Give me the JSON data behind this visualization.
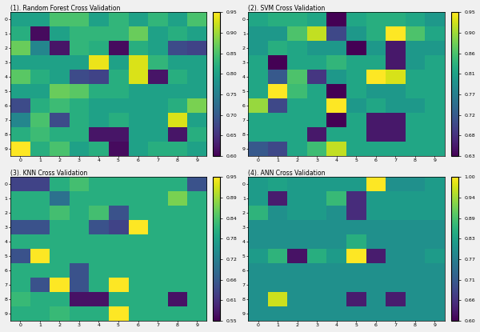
{
  "title_rf": "(1). Random Forest Cross Validation",
  "title_svm": "(2). SVM Cross Validation",
  "title_knn": "(3). KNN Cross Validation",
  "title_ann": "(4). ANN Cross Validation",
  "nrows": 10,
  "ncols": 10,
  "cmap": "viridis",
  "rf_vmin": 0.6,
  "rf_vmax": 0.95,
  "svm_vmin": 0.63,
  "svm_vmax": 0.95,
  "knn_vmin": 0.55,
  "knn_vmax": 0.95,
  "ann_vmin": 0.6,
  "ann_vmax": 1.0,
  "rf_data": [
    [
      0.8,
      0.8,
      0.85,
      0.85,
      0.8,
      0.83,
      0.8,
      0.83,
      0.8,
      0.85
    ],
    [
      0.82,
      0.61,
      0.8,
      0.83,
      0.83,
      0.83,
      0.87,
      0.8,
      0.82,
      0.8
    ],
    [
      0.87,
      0.76,
      0.62,
      0.83,
      0.82,
      0.61,
      0.82,
      0.8,
      0.68,
      0.67
    ],
    [
      0.8,
      0.8,
      0.8,
      0.8,
      0.94,
      0.8,
      0.93,
      0.83,
      0.8,
      0.8
    ],
    [
      0.86,
      0.82,
      0.8,
      0.68,
      0.67,
      0.82,
      0.93,
      0.62,
      0.82,
      0.8
    ],
    [
      0.8,
      0.8,
      0.87,
      0.86,
      0.82,
      0.82,
      0.8,
      0.8,
      0.8,
      0.8
    ],
    [
      0.68,
      0.82,
      0.84,
      0.82,
      0.8,
      0.8,
      0.8,
      0.8,
      0.82,
      0.88
    ],
    [
      0.76,
      0.85,
      0.68,
      0.82,
      0.8,
      0.82,
      0.8,
      0.8,
      0.93,
      0.8
    ],
    [
      0.82,
      0.84,
      0.82,
      0.82,
      0.62,
      0.62,
      0.8,
      0.8,
      0.62,
      0.82
    ],
    [
      0.95,
      0.82,
      0.85,
      0.8,
      0.82,
      0.61,
      0.8,
      0.82,
      0.82,
      0.8
    ]
  ],
  "svm_data": [
    [
      0.82,
      0.83,
      0.83,
      0.82,
      0.63,
      0.82,
      0.83,
      0.83,
      0.82,
      0.8
    ],
    [
      0.8,
      0.8,
      0.86,
      0.92,
      0.7,
      0.8,
      0.83,
      0.95,
      0.86,
      0.82
    ],
    [
      0.8,
      0.83,
      0.82,
      0.8,
      0.8,
      0.63,
      0.8,
      0.65,
      0.8,
      0.8
    ],
    [
      0.82,
      0.63,
      0.82,
      0.82,
      0.84,
      0.82,
      0.82,
      0.65,
      0.8,
      0.82
    ],
    [
      0.82,
      0.72,
      0.86,
      0.68,
      0.8,
      0.82,
      0.95,
      0.93,
      0.82,
      0.82
    ],
    [
      0.82,
      0.95,
      0.85,
      0.82,
      0.63,
      0.82,
      0.8,
      0.8,
      0.82,
      0.82
    ],
    [
      0.9,
      0.7,
      0.82,
      0.82,
      0.95,
      0.8,
      0.82,
      0.8,
      0.8,
      0.82
    ],
    [
      0.82,
      0.82,
      0.82,
      0.82,
      0.63,
      0.82,
      0.65,
      0.65,
      0.82,
      0.82
    ],
    [
      0.82,
      0.82,
      0.82,
      0.65,
      0.82,
      0.82,
      0.65,
      0.65,
      0.82,
      0.82
    ],
    [
      0.72,
      0.7,
      0.82,
      0.85,
      0.92,
      0.82,
      0.82,
      0.82,
      0.82,
      0.82
    ]
  ],
  "knn_data": [
    [
      0.63,
      0.63,
      0.8,
      0.83,
      0.8,
      0.8,
      0.8,
      0.8,
      0.8,
      0.65
    ],
    [
      0.8,
      0.8,
      0.7,
      0.8,
      0.8,
      0.8,
      0.8,
      0.8,
      0.87,
      0.8
    ],
    [
      0.8,
      0.8,
      0.83,
      0.8,
      0.83,
      0.65,
      0.8,
      0.8,
      0.8,
      0.8
    ],
    [
      0.65,
      0.65,
      0.8,
      0.8,
      0.65,
      0.63,
      0.95,
      0.8,
      0.8,
      0.8
    ],
    [
      0.8,
      0.8,
      0.8,
      0.8,
      0.8,
      0.8,
      0.8,
      0.8,
      0.8,
      0.8
    ],
    [
      0.65,
      0.95,
      0.8,
      0.8,
      0.8,
      0.8,
      0.8,
      0.8,
      0.8,
      0.8
    ],
    [
      0.8,
      0.8,
      0.8,
      0.65,
      0.8,
      0.8,
      0.8,
      0.8,
      0.8,
      0.8
    ],
    [
      0.8,
      0.65,
      0.95,
      0.65,
      0.8,
      0.95,
      0.8,
      0.8,
      0.8,
      0.8
    ],
    [
      0.82,
      0.8,
      0.8,
      0.57,
      0.57,
      0.8,
      0.8,
      0.8,
      0.57,
      0.8
    ],
    [
      0.8,
      0.8,
      0.82,
      0.8,
      0.8,
      0.95,
      0.8,
      0.8,
      0.8,
      0.8
    ]
  ],
  "ann_data": [
    [
      0.82,
      0.83,
      0.82,
      0.82,
      0.82,
      0.82,
      1.0,
      0.8,
      0.8,
      0.82
    ],
    [
      0.82,
      0.63,
      0.82,
      0.82,
      0.87,
      0.65,
      0.82,
      0.82,
      0.82,
      0.82
    ],
    [
      0.86,
      0.8,
      0.82,
      0.82,
      0.8,
      0.65,
      0.82,
      0.82,
      0.82,
      0.82
    ],
    [
      0.8,
      0.8,
      0.8,
      0.8,
      0.8,
      0.8,
      0.8,
      0.8,
      0.8,
      0.8
    ],
    [
      0.8,
      0.8,
      0.8,
      0.8,
      0.8,
      0.85,
      0.8,
      0.8,
      0.8,
      0.8
    ],
    [
      0.82,
      0.86,
      0.62,
      0.85,
      0.82,
      1.0,
      0.63,
      0.8,
      0.8,
      0.82
    ],
    [
      0.8,
      0.8,
      0.8,
      0.8,
      0.8,
      0.8,
      0.8,
      0.8,
      0.8,
      0.8
    ],
    [
      0.8,
      0.8,
      0.8,
      0.8,
      0.8,
      0.8,
      0.8,
      0.8,
      0.8,
      0.8
    ],
    [
      0.8,
      0.97,
      0.8,
      0.8,
      0.8,
      0.63,
      0.8,
      0.63,
      0.8,
      0.8
    ],
    [
      0.8,
      0.8,
      0.8,
      0.8,
      0.8,
      0.8,
      0.8,
      0.8,
      0.8,
      0.8
    ]
  ]
}
